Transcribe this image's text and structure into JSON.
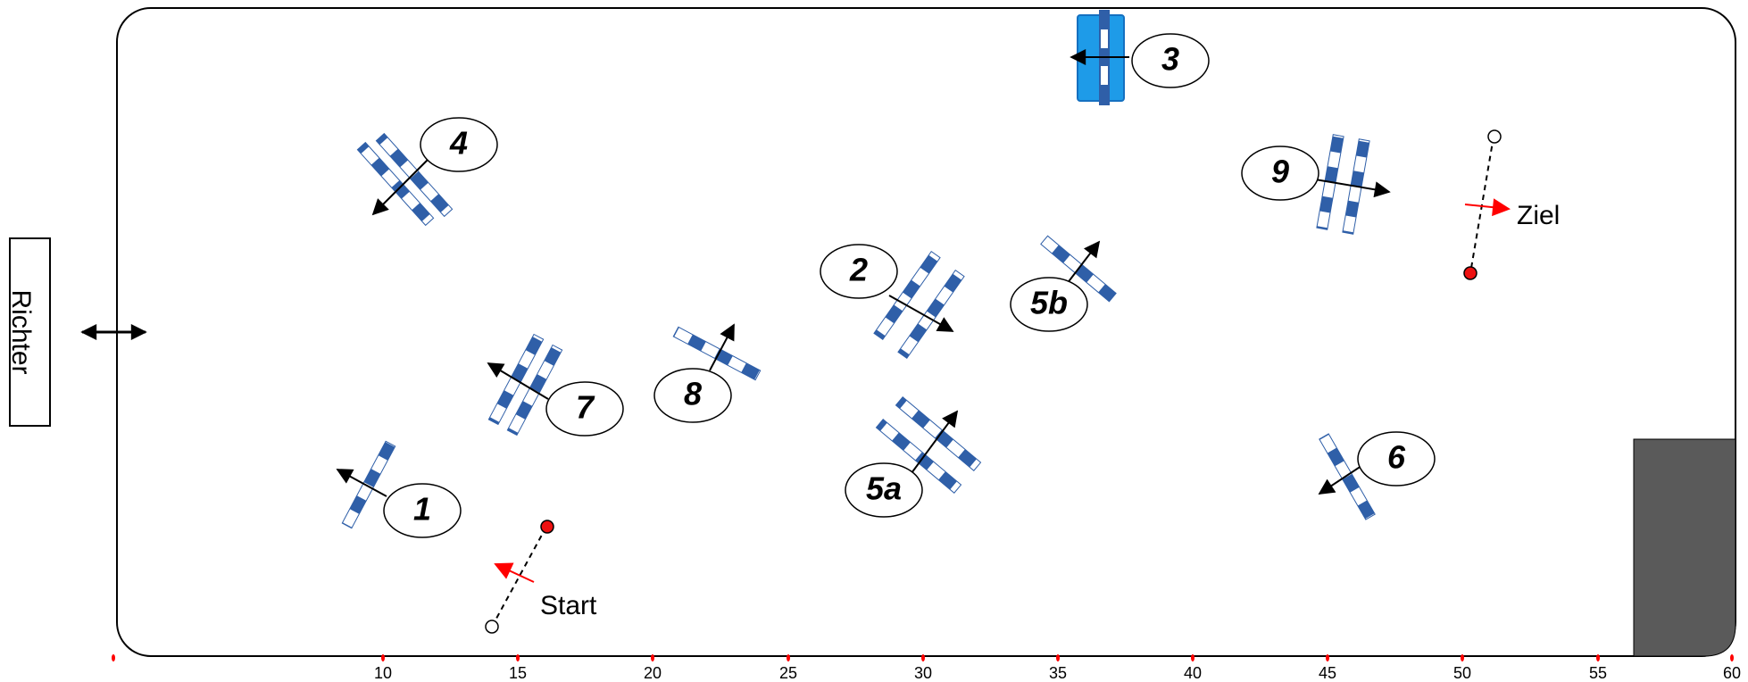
{
  "judge_label": "Richter",
  "start_label": "Start",
  "finish_label": "Ziel",
  "obstacles": [
    {
      "id": "1",
      "label": "1"
    },
    {
      "id": "2",
      "label": "2"
    },
    {
      "id": "3",
      "label": "3"
    },
    {
      "id": "4",
      "label": "4"
    },
    {
      "id": "5a",
      "label": "5a"
    },
    {
      "id": "5b",
      "label": "5b"
    },
    {
      "id": "6",
      "label": "6"
    },
    {
      "id": "7",
      "label": "7"
    },
    {
      "id": "8",
      "label": "8"
    },
    {
      "id": "9",
      "label": "9"
    }
  ],
  "scale_ticks": [
    "10",
    "15",
    "20",
    "25",
    "30",
    "35",
    "40",
    "45",
    "50",
    "55",
    "60"
  ],
  "colors": {
    "pole_blue": "#2f5fa8",
    "water_blue": "#1e9be8",
    "flag_red": "#ee1111",
    "arrow_red": "#ff0000",
    "block_gray": "#5a5a5a",
    "outline": "#000000"
  }
}
